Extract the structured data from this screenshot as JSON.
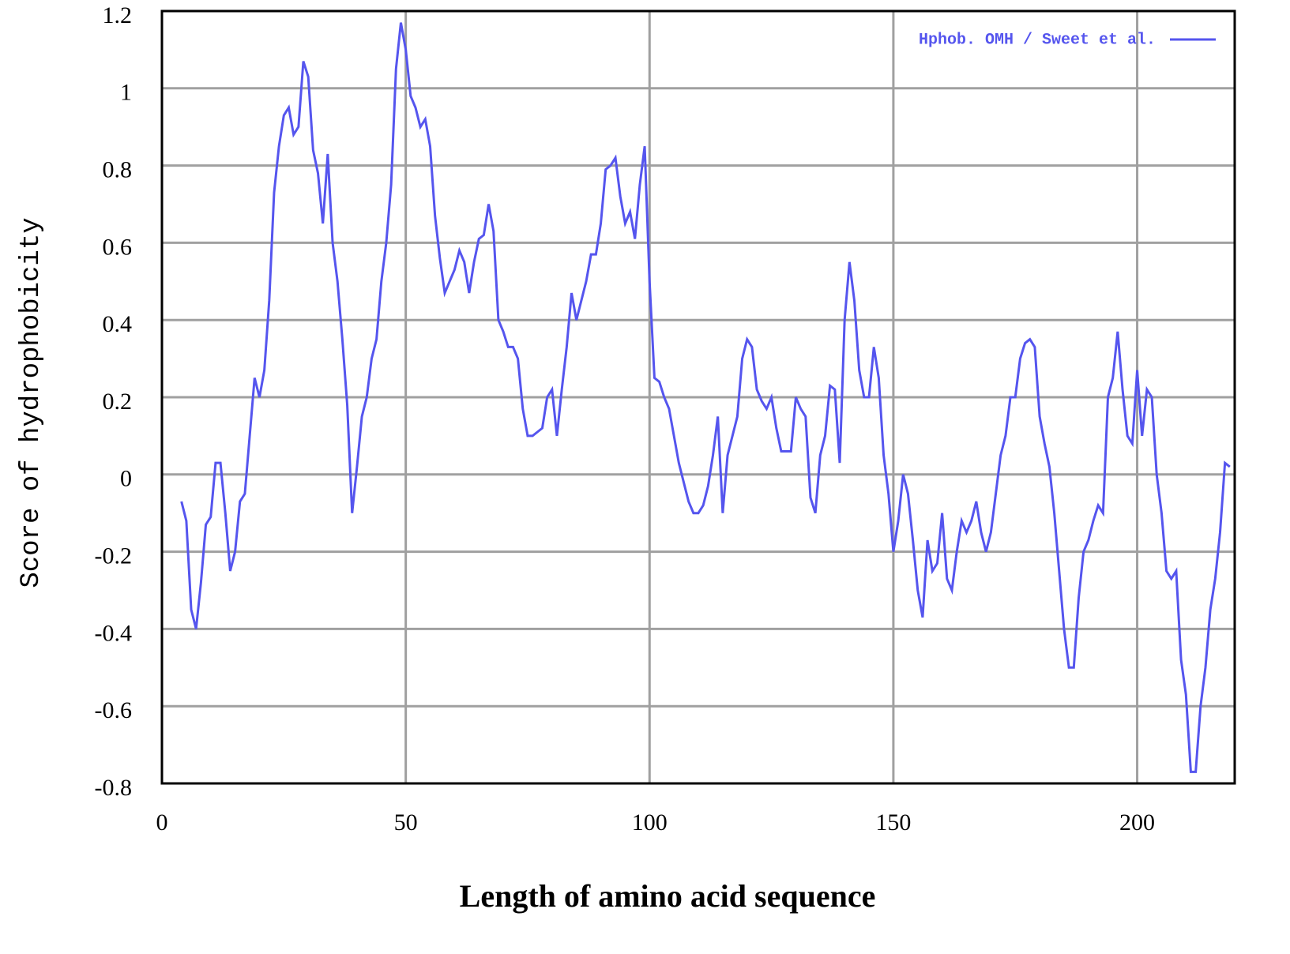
{
  "chart_data": {
    "type": "line",
    "xlabel": "Length of amino acid sequence",
    "ylabel": "Score of hydrophobicity",
    "x": [
      4,
      5,
      6,
      7,
      8,
      9,
      10,
      11,
      12,
      13,
      14,
      15,
      16,
      17,
      18,
      19,
      20,
      21,
      22,
      23,
      24,
      25,
      26,
      27,
      28,
      29,
      30,
      31,
      32,
      33,
      34,
      35,
      36,
      37,
      38,
      39,
      40,
      41,
      42,
      43,
      44,
      45,
      46,
      47,
      48,
      49,
      50,
      51,
      52,
      53,
      54,
      55,
      56,
      57,
      58,
      59,
      60,
      61,
      62,
      63,
      64,
      65,
      66,
      67,
      68,
      69,
      70,
      71,
      72,
      73,
      74,
      75,
      76,
      77,
      78,
      79,
      80,
      81,
      82,
      83,
      84,
      85,
      86,
      87,
      88,
      89,
      90,
      91,
      92,
      93,
      94,
      95,
      96,
      97,
      98,
      99,
      100,
      101,
      102,
      103,
      104,
      105,
      106,
      107,
      108,
      109,
      110,
      111,
      112,
      113,
      114,
      115,
      116,
      117,
      118,
      119,
      120,
      121,
      122,
      123,
      124,
      125,
      126,
      127,
      128,
      129,
      130,
      131,
      132,
      133,
      134,
      135,
      136,
      137,
      138,
      139,
      140,
      141,
      142,
      143,
      144,
      145,
      146,
      147,
      148,
      149,
      150,
      151,
      152,
      153,
      154,
      155,
      156,
      157,
      158,
      159,
      160,
      161,
      162,
      163,
      164,
      165,
      166,
      167,
      168,
      169,
      170,
      171,
      172,
      173,
      174,
      175,
      176,
      177,
      178,
      179,
      180,
      181,
      182,
      183,
      184,
      185,
      186,
      187,
      188,
      189,
      190,
      191,
      192,
      193,
      194,
      195,
      196,
      197,
      198,
      199,
      200,
      201,
      202,
      203,
      204,
      205,
      206,
      207,
      208,
      209,
      210,
      211,
      212,
      213,
      214,
      215,
      216,
      217,
      218,
      219
    ],
    "series": [
      {
        "name": "Hphob. OMH / Sweet et al.",
        "color": "#5555ee",
        "values": [
          -0.07,
          -0.12,
          -0.35,
          -0.4,
          -0.28,
          -0.13,
          -0.11,
          0.03,
          0.03,
          -0.1,
          -0.25,
          -0.2,
          -0.07,
          -0.05,
          0.1,
          0.25,
          0.2,
          0.27,
          0.45,
          0.73,
          0.85,
          0.93,
          0.95,
          0.88,
          0.9,
          1.07,
          1.03,
          0.84,
          0.78,
          0.65,
          0.83,
          0.6,
          0.5,
          0.35,
          0.18,
          -0.1,
          0.02,
          0.15,
          0.2,
          0.3,
          0.35,
          0.5,
          0.6,
          0.75,
          1.05,
          1.17,
          1.1,
          0.98,
          0.95,
          0.9,
          0.92,
          0.85,
          0.67,
          0.56,
          0.47,
          0.5,
          0.53,
          0.58,
          0.55,
          0.47,
          0.55,
          0.61,
          0.62,
          0.7,
          0.63,
          0.4,
          0.37,
          0.33,
          0.33,
          0.3,
          0.17,
          0.1,
          0.1,
          0.11,
          0.12,
          0.2,
          0.22,
          0.1,
          0.22,
          0.33,
          0.47,
          0.4,
          0.45,
          0.5,
          0.57,
          0.57,
          0.65,
          0.79,
          0.8,
          0.82,
          0.72,
          0.65,
          0.68,
          0.61,
          0.75,
          0.85,
          0.5,
          0.25,
          0.24,
          0.2,
          0.17,
          0.1,
          0.03,
          -0.02,
          -0.07,
          -0.1,
          -0.1,
          -0.08,
          -0.03,
          0.05,
          0.15,
          -0.1,
          0.05,
          0.1,
          0.15,
          0.3,
          0.35,
          0.33,
          0.22,
          0.19,
          0.17,
          0.2,
          0.12,
          0.06,
          0.06,
          0.06,
          0.2,
          0.17,
          0.15,
          -0.06,
          -0.1,
          0.05,
          0.1,
          0.23,
          0.22,
          0.03,
          0.4,
          0.55,
          0.45,
          0.27,
          0.2,
          0.2,
          0.33,
          0.25,
          0.05,
          -0.05,
          -0.2,
          -0.12,
          0.0,
          -0.05,
          -0.17,
          -0.3,
          -0.37,
          -0.17,
          -0.25,
          -0.23,
          -0.1,
          -0.27,
          -0.3,
          -0.2,
          -0.12,
          -0.15,
          -0.12,
          -0.07,
          -0.15,
          -0.2,
          -0.15,
          -0.05,
          0.05,
          0.1,
          0.2,
          0.2,
          0.3,
          0.34,
          0.35,
          0.33,
          0.15,
          0.08,
          0.02,
          -0.1,
          -0.25,
          -0.4,
          -0.5,
          -0.5,
          -0.32,
          -0.2,
          -0.17,
          -0.12,
          -0.08,
          -0.1,
          0.2,
          0.25,
          0.37,
          0.22,
          0.1,
          0.08,
          0.27,
          0.1,
          0.22,
          0.2,
          0.0,
          -0.1,
          -0.25,
          -0.27,
          -0.25,
          -0.48,
          -0.57,
          -0.77,
          -0.77,
          -0.6,
          -0.5,
          -0.35,
          -0.27,
          -0.15,
          0.03,
          0.02
        ]
      }
    ],
    "xlim": [
      0,
      220
    ],
    "xticks": [
      0,
      50,
      100,
      150,
      200
    ],
    "ylim": [
      -0.8,
      1.2
    ],
    "yticks": [
      -0.8,
      -0.6,
      -0.4,
      -0.2,
      0,
      0.2,
      0.4,
      0.6,
      0.8,
      1,
      1.2
    ],
    "grid": true,
    "legend": "top-right"
  }
}
